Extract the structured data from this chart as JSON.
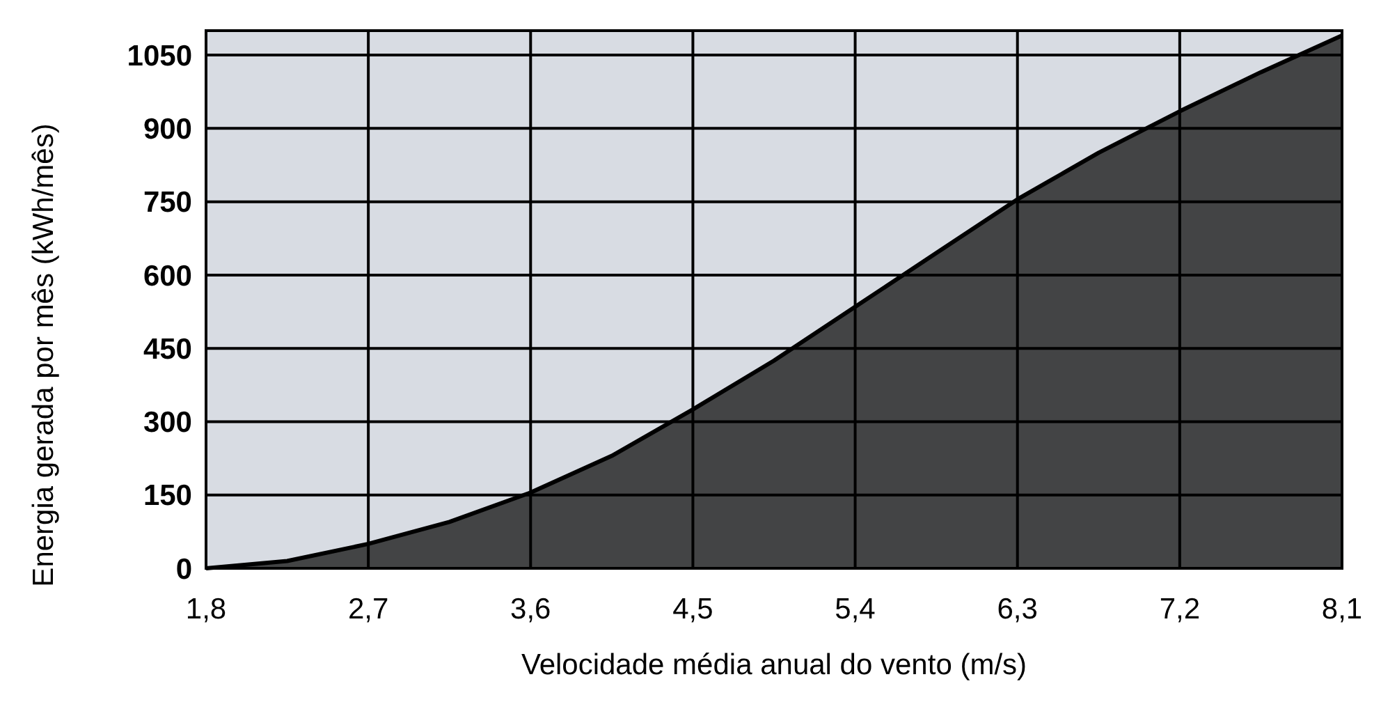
{
  "chart_data": {
    "type": "area",
    "xlabel": "Velocidade média anual do vento (m/s)",
    "ylabel": "Energia gerada por mês (kWh/mês)",
    "x": [
      1.8,
      2.25,
      2.7,
      3.15,
      3.6,
      4.05,
      4.5,
      4.95,
      5.4,
      5.85,
      6.3,
      6.75,
      7.2,
      7.65,
      8.1
    ],
    "series": [
      {
        "color": "#333333",
        "values": [
          0,
          15,
          50,
          95,
          155,
          230,
          325,
          425,
          535,
          645,
          755,
          850,
          935,
          1015,
          1090
        ]
      }
    ],
    "xlim": [
      1.8,
      8.1
    ],
    "ylim": [
      0,
      1100
    ],
    "xticks": [
      {
        "value": 1.8,
        "label": "1,8"
      },
      {
        "value": 2.7,
        "label": "2,7"
      },
      {
        "value": 3.6,
        "label": "3,6"
      },
      {
        "value": 4.5,
        "label": "4,5"
      },
      {
        "value": 5.4,
        "label": "5,4"
      },
      {
        "value": 6.3,
        "label": "6,3"
      },
      {
        "value": 7.2,
        "label": "7,2"
      },
      {
        "value": 8.1,
        "label": "8,1"
      }
    ],
    "yticks": [
      0,
      150,
      300,
      450,
      600,
      750,
      900,
      1050
    ],
    "grid": true
  }
}
